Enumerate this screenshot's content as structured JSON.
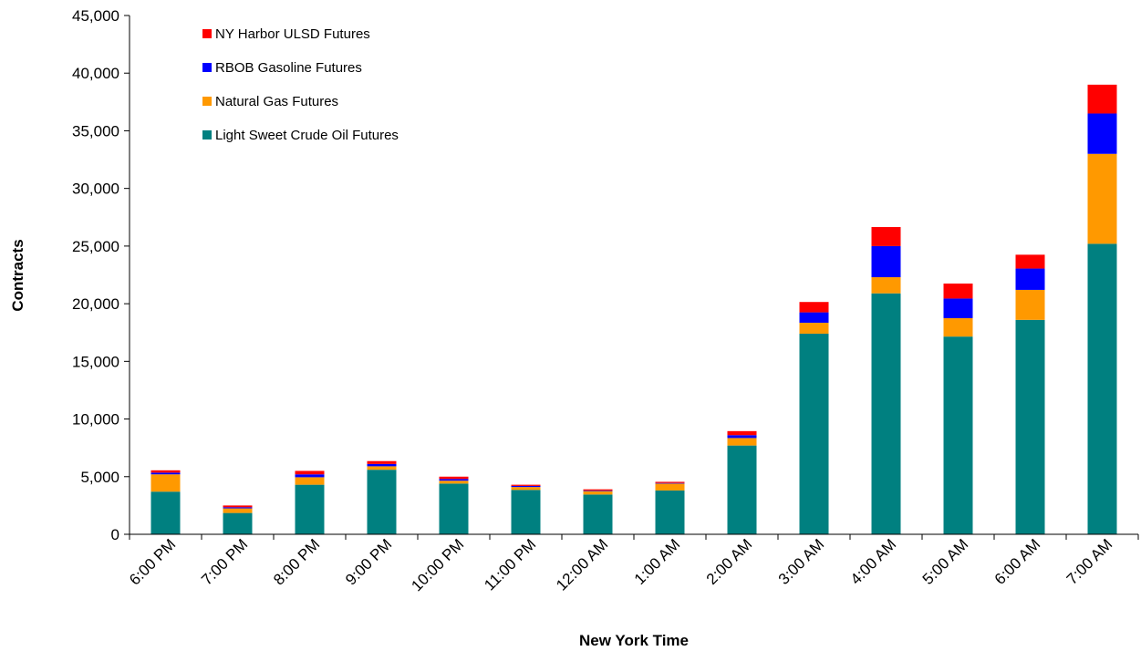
{
  "chart_data": {
    "type": "bar",
    "stacked": true,
    "title": "",
    "xlabel": "New York Time",
    "ylabel": "Contracts",
    "ylim": [
      0,
      45000
    ],
    "yticks": [
      0,
      5000,
      10000,
      15000,
      20000,
      25000,
      30000,
      35000,
      40000,
      45000
    ],
    "ytick_labels": [
      "0",
      "5,000",
      "10,000",
      "15,000",
      "20,000",
      "25,000",
      "30,000",
      "35,000",
      "40,000",
      "45,000"
    ],
    "grid": false,
    "legend_position": "top-left",
    "categories": [
      "6:00 PM",
      "7:00 PM",
      "8:00 PM",
      "9:00 PM",
      "10:00 PM",
      "11:00 PM",
      "12:00 AM",
      "1:00 AM",
      "2:00 AM",
      "3:00 AM",
      "4:00 AM",
      "5:00 AM",
      "6:00 AM",
      "7:00 AM"
    ],
    "series": [
      {
        "name": "Light Sweet Crude Oil Futures",
        "color": "#008080",
        "values": [
          3700,
          1850,
          4300,
          5600,
          4400,
          3850,
          3450,
          3800,
          7700,
          17400,
          20900,
          17150,
          18600,
          25200
        ]
      },
      {
        "name": "Natural Gas Futures",
        "color": "#FF9900",
        "values": [
          1500,
          400,
          650,
          300,
          250,
          250,
          300,
          600,
          650,
          950,
          1400,
          1600,
          2600,
          7800
        ]
      },
      {
        "name": "RBOB Gasoline Futures",
        "color": "#0000FF",
        "values": [
          150,
          100,
          250,
          200,
          150,
          100,
          50,
          50,
          250,
          900,
          2700,
          1700,
          1850,
          3500
        ]
      },
      {
        "name": "NY Harbor ULSD Futures",
        "color": "#FF0000",
        "values": [
          200,
          150,
          300,
          250,
          200,
          100,
          100,
          100,
          350,
          900,
          1650,
          1300,
          1200,
          2500
        ]
      }
    ],
    "legend_order": [
      "NY Harbor ULSD Futures",
      "RBOB Gasoline Futures",
      "Natural Gas Futures",
      "Light Sweet Crude Oil Futures"
    ]
  }
}
